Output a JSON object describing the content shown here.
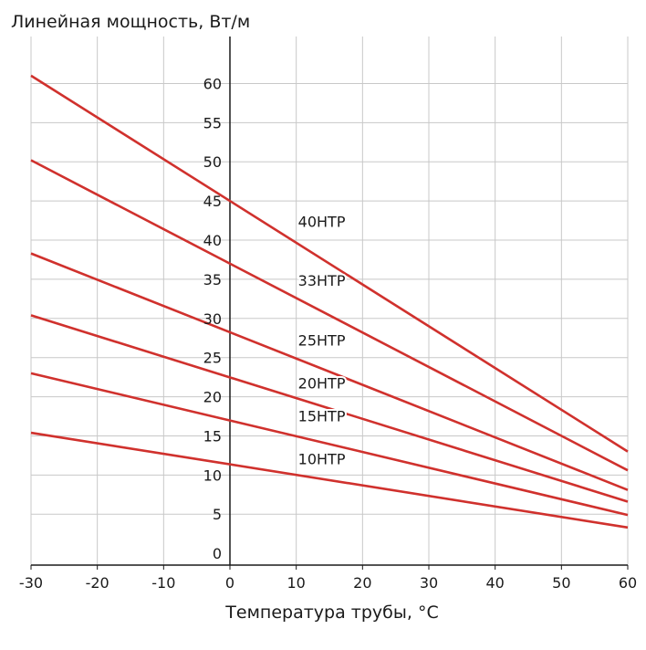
{
  "chart_data": {
    "type": "line",
    "title": "",
    "ylabel": "Линейная мощность, Вт/м",
    "xlabel": "Температура трубы, °C",
    "xlim": [
      -30,
      60
    ],
    "ylim": [
      -1.5,
      66
    ],
    "x_ticks": [
      -30,
      -20,
      -10,
      0,
      10,
      20,
      30,
      40,
      50,
      60
    ],
    "x_tick_labels": [
      "-30",
      "-20",
      "-10",
      "0",
      "10",
      "20",
      "30",
      "40",
      "50",
      "60"
    ],
    "y_ticks": [
      0,
      5,
      10,
      15,
      20,
      25,
      30,
      35,
      40,
      45,
      50,
      55,
      60
    ],
    "y_tick_labels": [
      "0",
      "5",
      "10",
      "15",
      "20",
      "25",
      "30",
      "35",
      "40",
      "45",
      "50",
      "55",
      "60"
    ],
    "grid": true,
    "line_color": "#d0312d",
    "grid_color": "#c8c8c8",
    "series": [
      {
        "name": "40НТР",
        "x": [
          -30,
          60
        ],
        "y": [
          61,
          13
        ],
        "label_at": [
          10,
          41.2
        ]
      },
      {
        "name": "33НТР",
        "x": [
          -30,
          60
        ],
        "y": [
          50.2,
          10.6
        ],
        "label_at": [
          10,
          33.7
        ]
      },
      {
        "name": "25НТР",
        "x": [
          -30,
          60
        ],
        "y": [
          38.3,
          8.1
        ],
        "label_at": [
          10,
          26.1
        ]
      },
      {
        "name": "20НТР",
        "x": [
          -30,
          60
        ],
        "y": [
          30.4,
          6.6
        ],
        "label_at": [
          10,
          20.6
        ]
      },
      {
        "name": "15НТР",
        "x": [
          -30,
          60
        ],
        "y": [
          23,
          4.9
        ],
        "label_at": [
          10,
          16.4
        ]
      },
      {
        "name": "10НТР",
        "x": [
          -30,
          60
        ],
        "y": [
          15.4,
          3.3
        ],
        "label_at": [
          10,
          10.9
        ]
      }
    ]
  }
}
